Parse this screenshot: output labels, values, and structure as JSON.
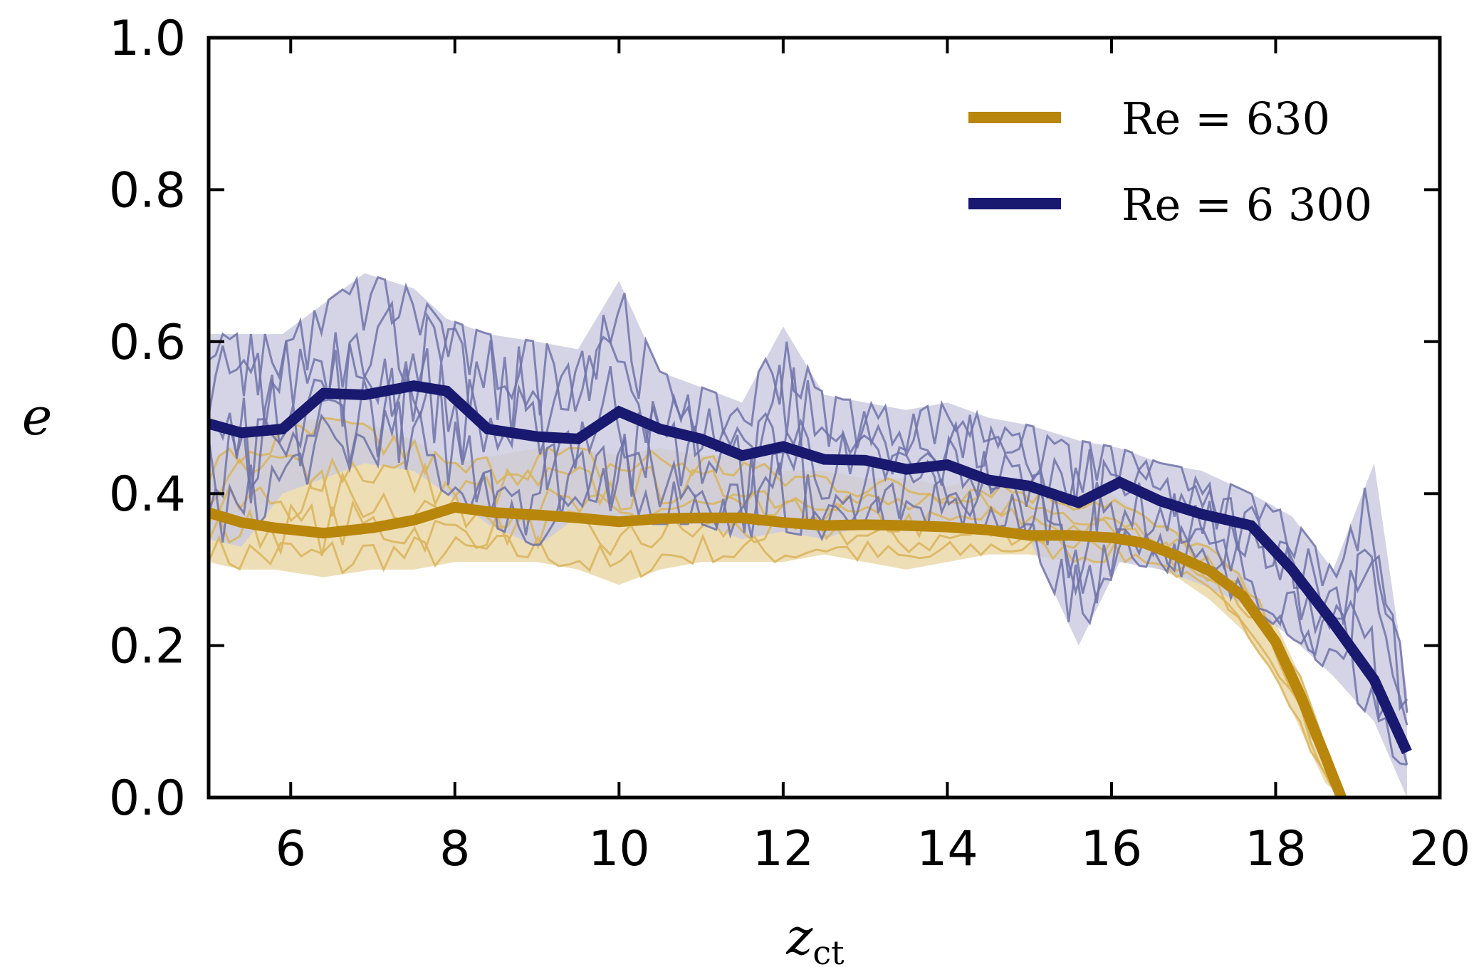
{
  "chart_data": {
    "type": "line",
    "title": "",
    "xlabel": "z",
    "xlabel_sub": "ct",
    "ylabel": "e",
    "xlim": [
      5,
      20
    ],
    "ylim": [
      0.0,
      1.0
    ],
    "xticks": [
      6,
      8,
      10,
      12,
      14,
      16,
      18,
      20
    ],
    "xtick_labels": [
      "6",
      "8",
      "10",
      "12",
      "14",
      "16",
      "18",
      "20"
    ],
    "yticks": [
      0.0,
      0.2,
      0.4,
      0.6,
      0.8,
      1.0
    ],
    "ytick_labels": [
      "0.0",
      "0.2",
      "0.4",
      "0.6",
      "0.8",
      "1.0"
    ],
    "grid": false,
    "legend_position": "top-right",
    "series": [
      {
        "name": "Re = 630",
        "legend_label": "Re = 630",
        "color": "#B8860B",
        "band_color": "#E8D39E",
        "x": [
          5.0,
          5.4,
          5.8,
          6.4,
          7.0,
          7.5,
          8.0,
          8.5,
          9.0,
          9.5,
          10.0,
          10.5,
          11.0,
          11.5,
          12.0,
          12.5,
          13.0,
          13.5,
          14.0,
          14.5,
          15.0,
          15.5,
          16.0,
          16.4,
          16.8,
          17.2,
          17.6,
          18.0,
          18.3,
          18.6,
          18.8
        ],
        "mean": [
          0.375,
          0.362,
          0.355,
          0.348,
          0.355,
          0.365,
          0.382,
          0.375,
          0.372,
          0.368,
          0.363,
          0.367,
          0.368,
          0.368,
          0.362,
          0.358,
          0.359,
          0.358,
          0.356,
          0.352,
          0.345,
          0.345,
          0.342,
          0.335,
          0.318,
          0.298,
          0.265,
          0.205,
          0.135,
          0.055,
          0.0
        ],
        "band_lower": [
          0.31,
          0.3,
          0.3,
          0.29,
          0.3,
          0.3,
          0.31,
          0.31,
          0.31,
          0.3,
          0.28,
          0.3,
          0.31,
          0.31,
          0.31,
          0.32,
          0.31,
          0.3,
          0.31,
          0.32,
          0.32,
          0.31,
          0.31,
          0.31,
          0.29,
          0.26,
          0.22,
          0.16,
          0.09,
          0.02,
          0.0
        ],
        "band_upper": [
          0.44,
          0.47,
          0.49,
          0.5,
          0.49,
          0.47,
          0.44,
          0.45,
          0.46,
          0.46,
          0.45,
          0.46,
          0.45,
          0.45,
          0.43,
          0.43,
          0.42,
          0.42,
          0.41,
          0.42,
          0.41,
          0.4,
          0.4,
          0.37,
          0.35,
          0.33,
          0.29,
          0.23,
          0.16,
          0.07,
          0.01
        ]
      },
      {
        "name": "Re = 6 300",
        "legend_label": "Re = 6 300",
        "color": "#191970",
        "band_color": "#C9C9E0",
        "x": [
          5.0,
          5.4,
          5.9,
          6.4,
          6.9,
          7.5,
          7.9,
          8.4,
          9.0,
          9.5,
          10.0,
          10.5,
          11.0,
          11.5,
          12.0,
          12.5,
          13.0,
          13.5,
          14.0,
          14.5,
          15.0,
          15.6,
          16.1,
          16.6,
          17.1,
          17.7,
          18.2,
          18.7,
          19.2,
          19.6
        ],
        "mean": [
          0.492,
          0.48,
          0.485,
          0.532,
          0.53,
          0.542,
          0.535,
          0.485,
          0.475,
          0.472,
          0.508,
          0.485,
          0.472,
          0.45,
          0.462,
          0.445,
          0.444,
          0.432,
          0.438,
          0.418,
          0.41,
          0.388,
          0.415,
          0.39,
          0.373,
          0.358,
          0.3,
          0.23,
          0.155,
          0.06
        ],
        "band_lower": [
          0.34,
          0.33,
          0.4,
          0.42,
          0.44,
          0.43,
          0.4,
          0.36,
          0.33,
          0.37,
          0.36,
          0.36,
          0.36,
          0.34,
          0.35,
          0.34,
          0.36,
          0.35,
          0.36,
          0.35,
          0.34,
          0.2,
          0.31,
          0.3,
          0.28,
          0.25,
          0.21,
          0.16,
          0.1,
          0.0
        ],
        "band_upper": [
          0.61,
          0.61,
          0.61,
          0.65,
          0.69,
          0.67,
          0.63,
          0.61,
          0.6,
          0.59,
          0.68,
          0.56,
          0.54,
          0.52,
          0.62,
          0.53,
          0.52,
          0.51,
          0.52,
          0.5,
          0.49,
          0.47,
          0.46,
          0.44,
          0.43,
          0.4,
          0.37,
          0.3,
          0.44,
          0.14
        ]
      }
    ]
  }
}
